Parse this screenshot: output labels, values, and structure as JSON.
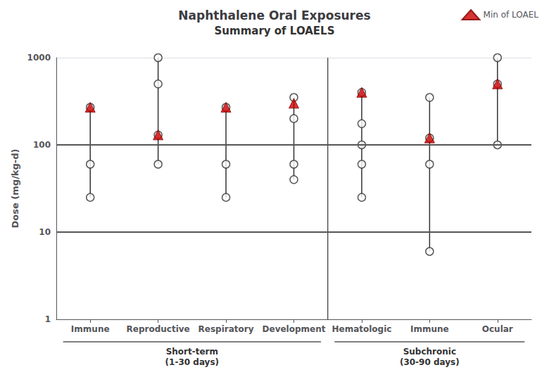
{
  "chart_data": {
    "type": "scatter",
    "title": "Naphthalene Oral Exposures",
    "subtitle": "Summary of LOAELS",
    "y_label": "Dose (mg/kg-d)",
    "categories": [
      "Immune",
      "Reproductive",
      "Respiratory",
      "Development",
      "Hematologic",
      "Immune",
      "Ocular"
    ],
    "series": [
      {
        "type": "scatter",
        "marker": "circle",
        "color": "#ffffff",
        "values": [
          [
            25,
            60,
            270
          ],
          [
            60,
            130,
            500,
            1000
          ],
          [
            25,
            60,
            270
          ],
          [
            40,
            60,
            200,
            350
          ],
          [
            25,
            60,
            100,
            175,
            400
          ],
          [
            6,
            60,
            120,
            350
          ],
          [
            100,
            500,
            1000
          ]
        ]
      },
      {
        "name": "Min of LOAEL",
        "type": "scatter",
        "marker": "triangle",
        "color": "#cc0000",
        "values": [
          270,
          130,
          270,
          300,
          400,
          120,
          500
        ]
      }
    ],
    "groups": [
      {
        "label": "Short-term\n(1-30 days)",
        "size": 4
      },
      {
        "label": "Subchronic\n(30-90 days)",
        "size": 3
      }
    ],
    "hlines": [
      10,
      100
    ],
    "ylim": [
      1,
      1000
    ],
    "yticks": [
      1,
      10,
      100,
      1000
    ],
    "log": "y",
    "grid": true,
    "legend": "upper right"
  }
}
